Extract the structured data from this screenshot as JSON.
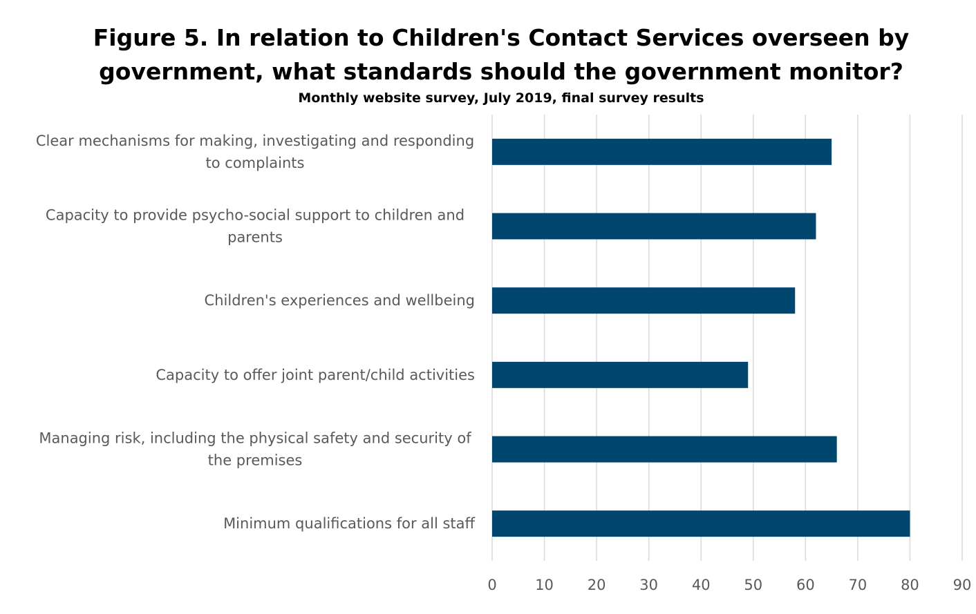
{
  "chart_data": {
    "type": "bar",
    "orientation": "horizontal",
    "title_lines": [
      "Figure 5. In relation to Children's Contact Services overseen by",
      "government, what standards should the government monitor?"
    ],
    "subtitle": "Monthly website survey, July 2019, final survey results",
    "categories": [
      [
        "Clear mechanisms for making, investigating and responding",
        "to complaints"
      ],
      [
        "Capacity to provide psycho-social support to children and",
        "parents"
      ],
      [
        "Children's experiences and wellbeing"
      ],
      [
        "Capacity to offer joint parent/child activities"
      ],
      [
        "Managing risk, including the physical safety and security of",
        "the premises"
      ],
      [
        "Minimum qualifications for all staff"
      ]
    ],
    "values": [
      65,
      62,
      58,
      49,
      66,
      80
    ],
    "xlim": [
      0,
      90
    ],
    "xticks": [
      "0",
      "10",
      "20",
      "30",
      "40",
      "50",
      "60",
      "70",
      "80",
      "90"
    ],
    "grid": "vertical",
    "legend": "none",
    "bar_color": "#00466E",
    "grid_color": "#D9D9D9",
    "label_color": "#595959"
  }
}
